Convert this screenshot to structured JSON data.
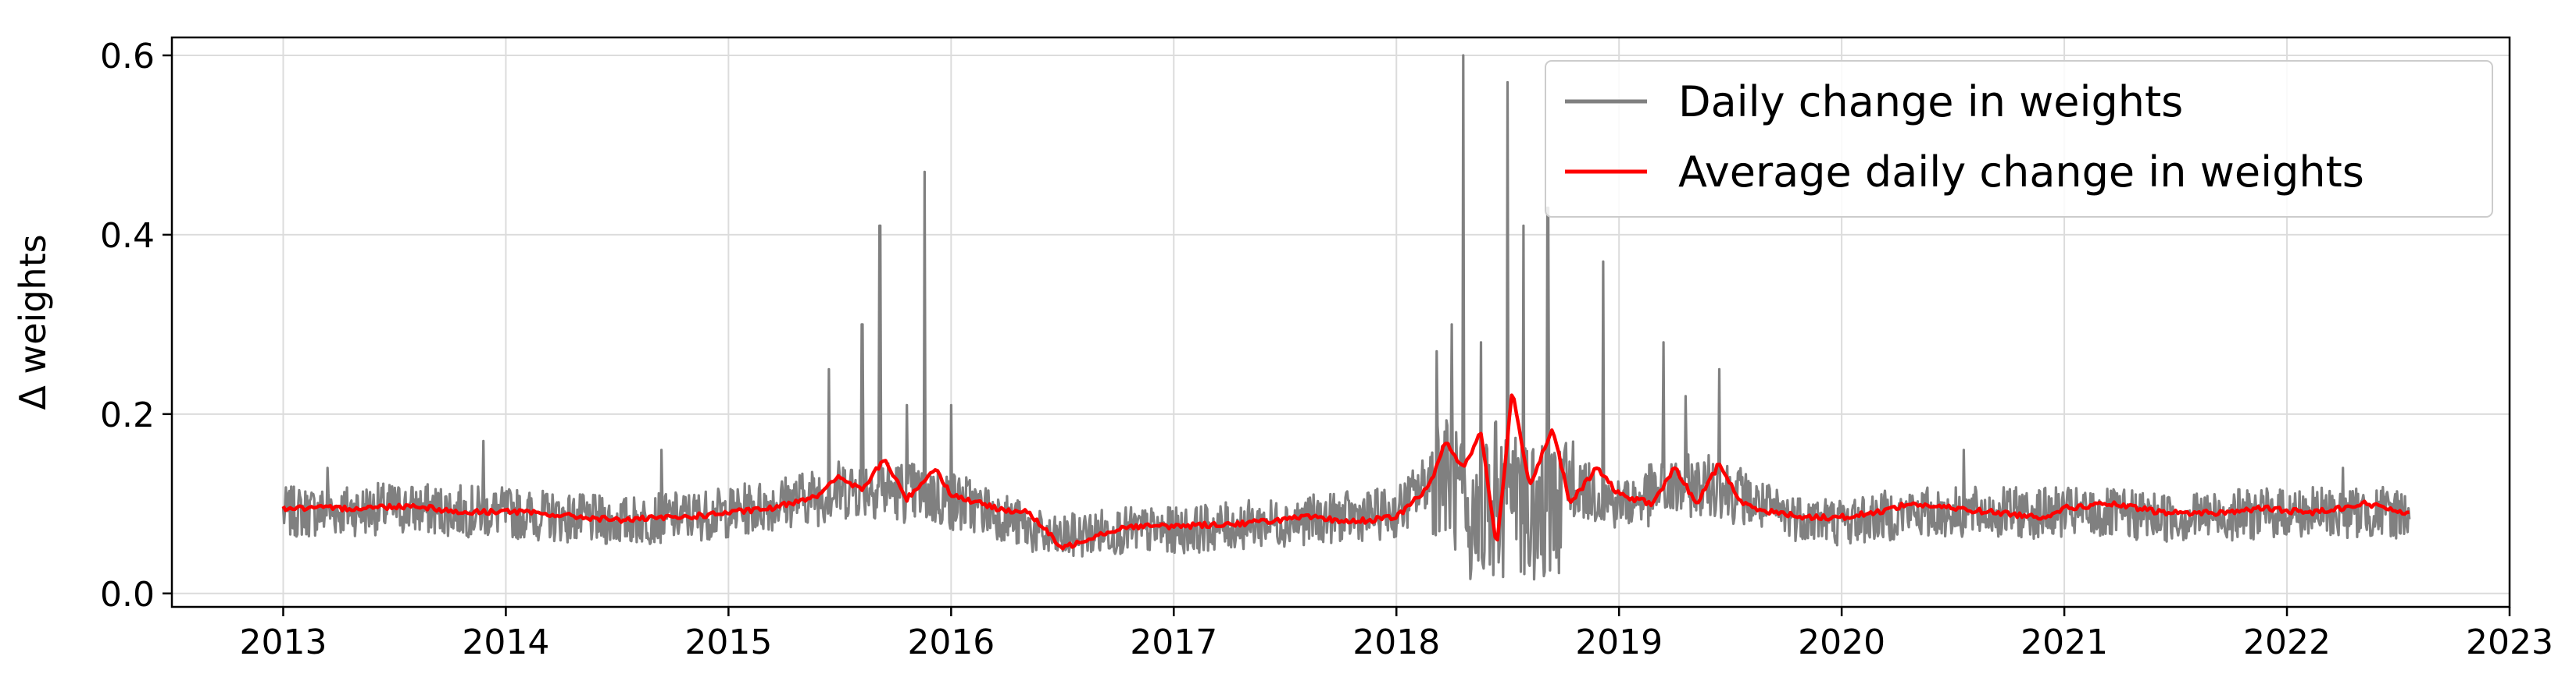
{
  "chart_data": {
    "type": "line",
    "title": "",
    "xlabel": "",
    "ylabel": "Δ weights",
    "xlim": [
      2012.5,
      2023.0
    ],
    "ylim": [
      -0.015,
      0.62
    ],
    "xticks": [
      2013,
      2014,
      2015,
      2016,
      2017,
      2018,
      2019,
      2020,
      2021,
      2022,
      2023
    ],
    "yticks": [
      0.0,
      0.2,
      0.4,
      0.6
    ],
    "ytick_labels": [
      "0.0",
      "0.2",
      "0.4",
      "0.6"
    ],
    "grid": true,
    "legend_position": "top-right",
    "series": [
      {
        "name": "Daily change in weights",
        "color": "#808080",
        "base_level": [
          [
            2013.0,
            0.09
          ],
          [
            2013.5,
            0.095
          ],
          [
            2014.0,
            0.09
          ],
          [
            2014.5,
            0.08
          ],
          [
            2015.0,
            0.09
          ],
          [
            2015.4,
            0.11
          ],
          [
            2015.6,
            0.12
          ],
          [
            2015.9,
            0.11
          ],
          [
            2016.2,
            0.09
          ],
          [
            2016.45,
            0.06
          ],
          [
            2016.7,
            0.07
          ],
          [
            2017.0,
            0.07
          ],
          [
            2017.5,
            0.08
          ],
          [
            2018.0,
            0.09
          ],
          [
            2018.2,
            0.14
          ],
          [
            2018.35,
            0.08
          ],
          [
            2018.5,
            0.15
          ],
          [
            2018.6,
            0.09
          ],
          [
            2018.8,
            0.12
          ],
          [
            2019.0,
            0.1
          ],
          [
            2019.3,
            0.12
          ],
          [
            2019.45,
            0.12
          ],
          [
            2019.7,
            0.09
          ],
          [
            2020.0,
            0.08
          ],
          [
            2020.3,
            0.09
          ],
          [
            2020.6,
            0.09
          ],
          [
            2021.0,
            0.09
          ],
          [
            2021.5,
            0.085
          ],
          [
            2022.0,
            0.09
          ],
          [
            2022.55,
            0.09
          ]
        ],
        "spikes": [
          [
            2013.2,
            0.14
          ],
          [
            2013.9,
            0.17
          ],
          [
            2014.7,
            0.16
          ],
          [
            2015.45,
            0.25
          ],
          [
            2015.6,
            0.3
          ],
          [
            2015.68,
            0.41
          ],
          [
            2015.8,
            0.21
          ],
          [
            2015.88,
            0.47
          ],
          [
            2016.0,
            0.21
          ],
          [
            2018.18,
            0.27
          ],
          [
            2018.25,
            0.3
          ],
          [
            2018.3,
            0.6
          ],
          [
            2018.38,
            0.28
          ],
          [
            2018.5,
            0.57
          ],
          [
            2018.57,
            0.41
          ],
          [
            2018.62,
            0.28
          ],
          [
            2018.68,
            0.43
          ],
          [
            2018.93,
            0.37
          ],
          [
            2019.2,
            0.28
          ],
          [
            2019.3,
            0.22
          ],
          [
            2019.45,
            0.25
          ],
          [
            2020.55,
            0.16
          ],
          [
            2022.25,
            0.14
          ]
        ]
      },
      {
        "name": "Average daily change in weights",
        "color": "#ff0000",
        "points": [
          [
            2013.0,
            0.095
          ],
          [
            2013.3,
            0.095
          ],
          [
            2013.6,
            0.098
          ],
          [
            2013.8,
            0.09
          ],
          [
            2014.0,
            0.092
          ],
          [
            2014.2,
            0.088
          ],
          [
            2014.5,
            0.082
          ],
          [
            2014.8,
            0.085
          ],
          [
            2015.0,
            0.09
          ],
          [
            2015.2,
            0.095
          ],
          [
            2015.4,
            0.11
          ],
          [
            2015.5,
            0.13
          ],
          [
            2015.6,
            0.115
          ],
          [
            2015.7,
            0.15
          ],
          [
            2015.8,
            0.105
          ],
          [
            2015.93,
            0.14
          ],
          [
            2016.0,
            0.11
          ],
          [
            2016.2,
            0.095
          ],
          [
            2016.35,
            0.09
          ],
          [
            2016.5,
            0.05
          ],
          [
            2016.65,
            0.065
          ],
          [
            2016.8,
            0.075
          ],
          [
            2017.0,
            0.075
          ],
          [
            2017.3,
            0.078
          ],
          [
            2017.6,
            0.085
          ],
          [
            2017.8,
            0.08
          ],
          [
            2018.0,
            0.085
          ],
          [
            2018.15,
            0.12
          ],
          [
            2018.22,
            0.17
          ],
          [
            2018.3,
            0.14
          ],
          [
            2018.38,
            0.18
          ],
          [
            2018.45,
            0.05
          ],
          [
            2018.52,
            0.225
          ],
          [
            2018.6,
            0.12
          ],
          [
            2018.7,
            0.185
          ],
          [
            2018.78,
            0.1
          ],
          [
            2018.9,
            0.14
          ],
          [
            2019.0,
            0.11
          ],
          [
            2019.15,
            0.1
          ],
          [
            2019.25,
            0.14
          ],
          [
            2019.35,
            0.1
          ],
          [
            2019.45,
            0.145
          ],
          [
            2019.55,
            0.1
          ],
          [
            2019.7,
            0.09
          ],
          [
            2019.85,
            0.085
          ],
          [
            2020.0,
            0.085
          ],
          [
            2020.15,
            0.09
          ],
          [
            2020.3,
            0.1
          ],
          [
            2020.5,
            0.095
          ],
          [
            2020.7,
            0.09
          ],
          [
            2020.9,
            0.085
          ],
          [
            2021.0,
            0.095
          ],
          [
            2021.2,
            0.1
          ],
          [
            2021.45,
            0.09
          ],
          [
            2021.7,
            0.09
          ],
          [
            2021.9,
            0.095
          ],
          [
            2022.1,
            0.09
          ],
          [
            2022.35,
            0.1
          ],
          [
            2022.55,
            0.09
          ]
        ]
      }
    ]
  }
}
